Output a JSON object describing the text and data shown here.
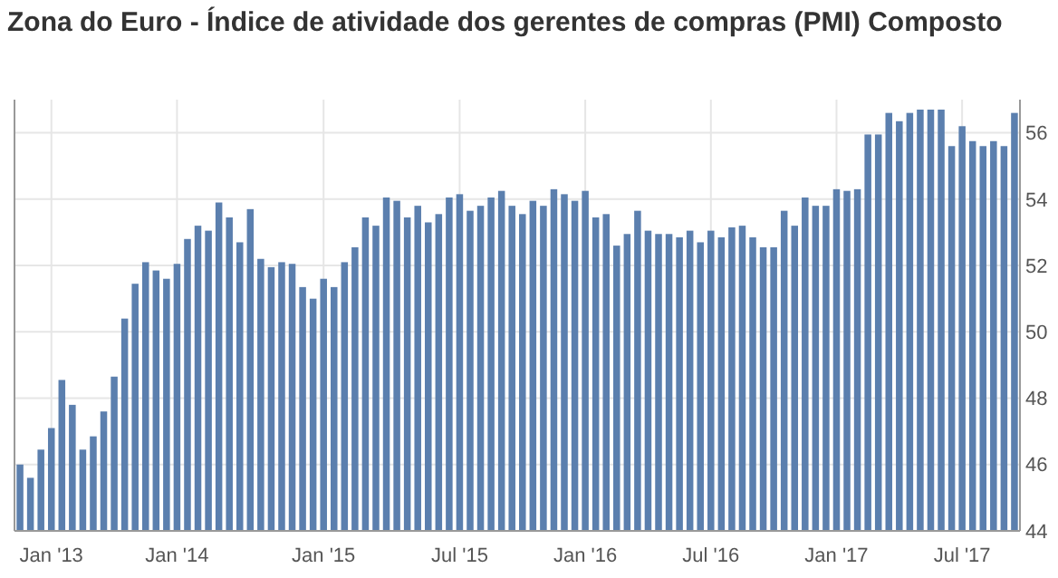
{
  "chart_data": {
    "type": "bar",
    "title": "Zona do Euro - Índice de atividade dos gerentes de compras (PMI) Composto",
    "categories": [
      null,
      null,
      null,
      "Jan '13",
      null,
      null,
      null,
      null,
      null,
      null,
      null,
      null,
      null,
      null,
      null,
      "Jan '14",
      null,
      null,
      null,
      null,
      null,
      null,
      null,
      null,
      null,
      null,
      null,
      null,
      null,
      "Jan '15",
      null,
      null,
      null,
      null,
      null,
      null,
      null,
      null,
      null,
      null,
      null,
      null,
      "Jul '15",
      null,
      null,
      null,
      null,
      null,
      null,
      null,
      null,
      null,
      null,
      null,
      "Jan '16",
      null,
      null,
      null,
      null,
      null,
      null,
      null,
      null,
      null,
      null,
      null,
      "Jul '16",
      null,
      null,
      null,
      null,
      null,
      null,
      null,
      null,
      null,
      null,
      null,
      "Jan '17",
      null,
      null,
      null,
      null,
      null,
      null,
      null,
      null,
      null,
      null,
      null,
      "Jul '17",
      null,
      null,
      null,
      null,
      null
    ],
    "values": [
      46.0,
      45.6,
      46.45,
      47.1,
      48.55,
      47.8,
      46.45,
      46.85,
      47.6,
      48.65,
      50.4,
      51.45,
      52.1,
      51.85,
      51.6,
      52.05,
      52.8,
      53.2,
      53.05,
      53.9,
      53.45,
      52.7,
      53.7,
      52.2,
      51.95,
      52.1,
      52.05,
      51.35,
      51.0,
      51.6,
      51.35,
      52.1,
      52.55,
      53.45,
      53.2,
      54.05,
      53.95,
      53.45,
      53.8,
      53.3,
      53.55,
      54.05,
      54.15,
      53.65,
      53.8,
      54.05,
      54.25,
      53.8,
      53.55,
      53.95,
      53.8,
      54.3,
      54.15,
      53.95,
      54.25,
      53.45,
      53.55,
      52.6,
      52.95,
      53.65,
      53.05,
      52.95,
      52.95,
      52.85,
      53.05,
      52.7,
      53.05,
      52.85,
      53.15,
      53.2,
      52.85,
      52.55,
      52.55,
      53.65,
      53.2,
      54.05,
      53.8,
      53.8,
      54.3,
      54.25,
      54.3,
      55.95,
      55.95,
      56.6,
      56.35,
      56.6,
      56.7,
      56.7,
      56.7,
      55.6,
      56.2,
      55.75,
      55.6,
      55.75,
      55.6,
      56.6
    ],
    "color": "#5b7fae",
    "ylim": [
      44,
      57
    ],
    "yticks": [
      44,
      46,
      48,
      50,
      52,
      54,
      56
    ],
    "grid": true
  }
}
